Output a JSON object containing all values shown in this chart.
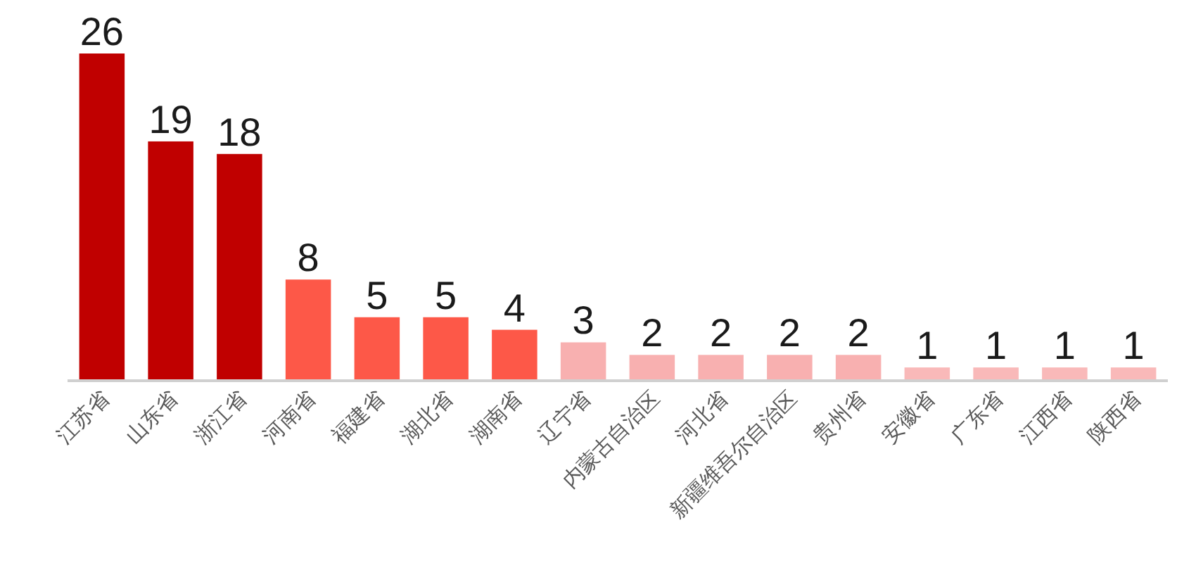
{
  "chart_data": {
    "type": "bar",
    "categories": [
      "江苏省",
      "山东省",
      "浙江省",
      "河南省",
      "福建省",
      "湖北省",
      "湖南省",
      "辽宁省",
      "内蒙古自治区",
      "河北省",
      "新疆维吾尔自治区",
      "贵州省",
      "安徽省",
      "广东省",
      "江西省",
      "陕西省"
    ],
    "values": [
      26,
      19,
      18,
      8,
      5,
      5,
      4,
      3,
      2,
      2,
      2,
      2,
      1,
      1,
      1,
      1
    ],
    "colors": [
      "#c00000",
      "#c00000",
      "#c00000",
      "#fd5848",
      "#fd5848",
      "#fd5848",
      "#fd5848",
      "#f8b0b0",
      "#f8b0b0",
      "#f8b0b0",
      "#f8b0b0",
      "#f8b0b0",
      "#f9b9b9",
      "#f9b9b9",
      "#f9b9b9",
      "#f9b9b9"
    ],
    "data_labels": true
  }
}
